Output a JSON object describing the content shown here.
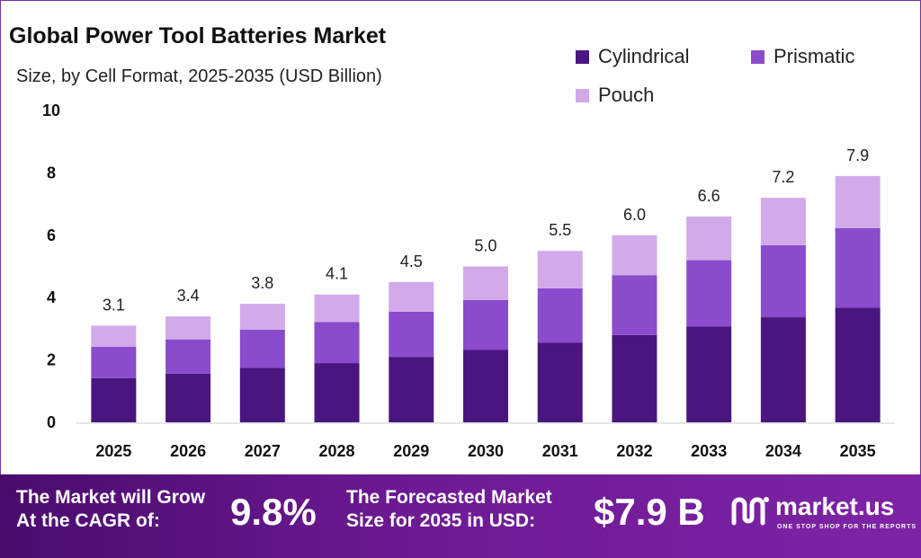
{
  "chart_data": {
    "type": "bar",
    "stacked": true,
    "title": "Global Power Tool Batteries Market",
    "subtitle": "Size, by Cell Format, 2025-2035 (USD Billion)",
    "categories": [
      "2025",
      "2026",
      "2027",
      "2028",
      "2029",
      "2030",
      "2031",
      "2032",
      "2033",
      "2034",
      "2035"
    ],
    "series": [
      {
        "name": "Cylindrical",
        "color": "#4b1580",
        "values": [
          1.42,
          1.56,
          1.75,
          1.9,
          2.1,
          2.32,
          2.55,
          2.8,
          3.07,
          3.37,
          3.68
        ]
      },
      {
        "name": "Prismatic",
        "color": "#8a4bcc",
        "values": [
          1.0,
          1.1,
          1.22,
          1.32,
          1.45,
          1.6,
          1.75,
          1.92,
          2.13,
          2.31,
          2.55
        ]
      },
      {
        "name": "Pouch",
        "color": "#d2aaea",
        "values": [
          0.68,
          0.74,
          0.83,
          0.88,
          0.95,
          1.08,
          1.2,
          1.28,
          1.4,
          1.52,
          1.67
        ]
      }
    ],
    "totals": [
      "3.1",
      "3.4",
      "3.8",
      "4.1",
      "4.5",
      "5.0",
      "5.5",
      "6.0",
      "6.6",
      "7.2",
      "7.9"
    ],
    "yticks": [
      "0",
      "2",
      "4",
      "6",
      "8",
      "10"
    ],
    "ylim": [
      0,
      10
    ],
    "grid": false,
    "legend_position": "top-right"
  },
  "banner": {
    "cagr_label": "The Market will Grow\nAt the CAGR of:",
    "cagr_value": "9.8%",
    "forecast_label": "The Forecasted Market\nSize for 2035 in USD:",
    "forecast_value": "$7.9 B",
    "logo_name": "market.us",
    "logo_tagline": "ONE STOP SHOP FOR THE REPORTS",
    "logo_icon": "market-us-logo-icon"
  }
}
